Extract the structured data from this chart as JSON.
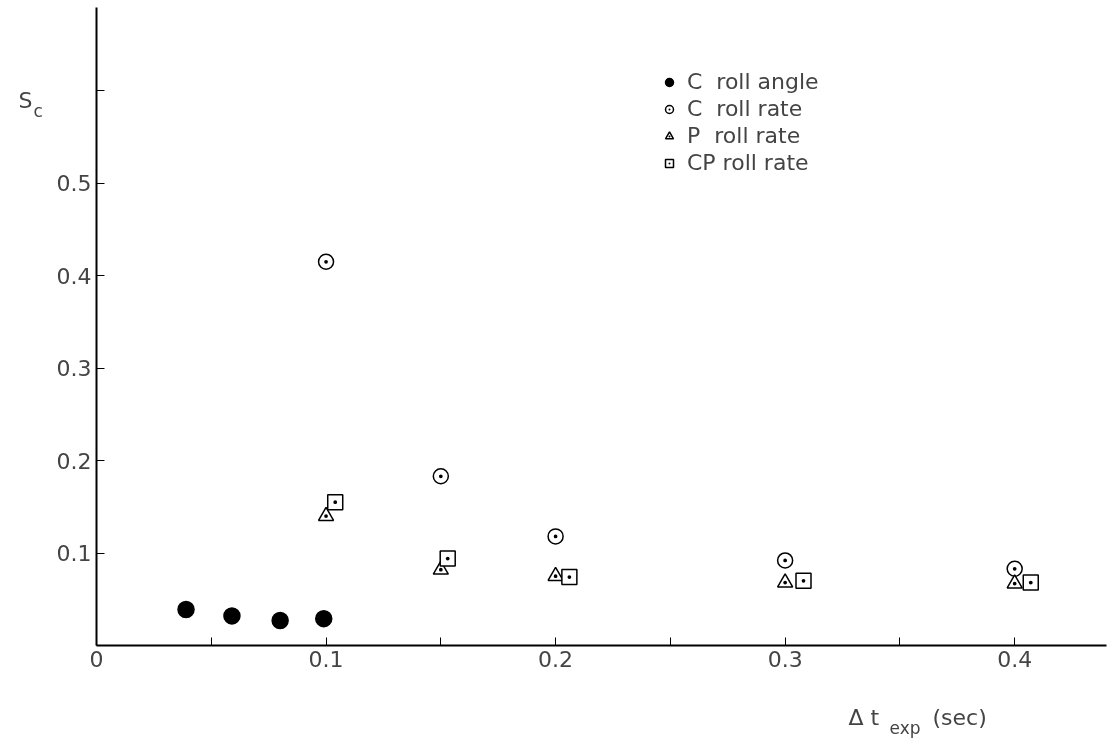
{
  "chart_data": {
    "type": "scatter",
    "xlabel": "Δ t$_{exp}$ (sec)",
    "ylabel": "S$_{c}$",
    "xlim": [
      0,
      0.44
    ],
    "ylim": [
      0,
      0.69
    ],
    "xticks": [
      0,
      {
        "value": 0.05,
        "label": null
      },
      0.1,
      {
        "value": 0.15,
        "label": null
      },
      0.2,
      {
        "value": 0.25,
        "label": null
      },
      0.3,
      {
        "value": 0.35,
        "label": null
      },
      0.4
    ],
    "yticks": [
      0.1,
      0.2,
      0.3,
      0.4,
      0.5,
      {
        "value": 0.6,
        "label": null
      }
    ],
    "grid": false,
    "legend": "top right",
    "series": [
      {
        "name": "C  roll angle",
        "color": "#000000",
        "marker": "circle",
        "x": [
          0.039,
          0.059,
          0.08,
          0.099
        ],
        "values": [
          0.039,
          0.032,
          0.027,
          0.029
        ]
      },
      {
        "name": "C  roll rate",
        "color": "#000000",
        "colors": [
          "#ffffff",
          "#ffffff",
          "#ffffff",
          "#ffffff",
          "#ffffff"
        ],
        "marker": "circle",
        "x": [
          0.1,
          0.15,
          0.2,
          0.3,
          0.4
        ],
        "values": [
          0.415,
          0.183,
          0.118,
          0.092,
          0.083
        ]
      },
      {
        "name": "P  roll rate",
        "color": "#000000",
        "colors": [
          "#ffffff",
          "#ffffff",
          "#ffffff",
          "#ffffff",
          "#ffffff"
        ],
        "marker": "triangle",
        "x": [
          0.1,
          0.15,
          0.2,
          0.3,
          0.4
        ],
        "values": [
          0.14,
          0.082,
          0.075,
          0.068,
          0.067
        ]
      },
      {
        "name": "CP roll rate",
        "color": "#000000",
        "colors": [
          "#ffffff",
          "#ffffff",
          "#ffffff",
          "#ffffff",
          "#ffffff"
        ],
        "marker": "square",
        "x": [
          0.104,
          0.153,
          0.206,
          0.308,
          0.407
        ],
        "values": [
          0.155,
          0.094,
          0.074,
          0.07,
          0.068
        ]
      }
    ]
  }
}
